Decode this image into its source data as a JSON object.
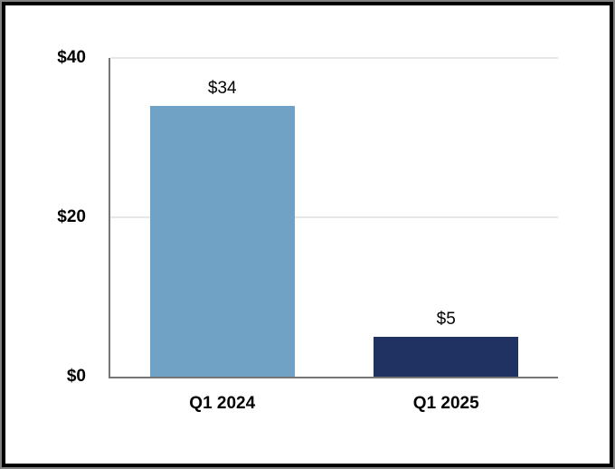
{
  "chart_data": {
    "type": "bar",
    "title": "",
    "xlabel": "",
    "ylabel": "",
    "categories": [
      "Q1 2024",
      "Q1 2025"
    ],
    "values": [
      34,
      5
    ],
    "value_labels": [
      "$34",
      "$5"
    ],
    "bar_colors": [
      "#6FA2C4",
      "#1F3262"
    ],
    "ylim": [
      0,
      40
    ],
    "yticks": [
      0,
      20,
      40
    ],
    "ytick_labels": [
      "$0",
      "$20",
      "$40"
    ],
    "grid": "horizontal-at-20-and-40",
    "legend_position": "none"
  },
  "frame": {
    "outer_border_color": "#828282",
    "inner_border_color": "#000000",
    "background_color": "#FFFFFF"
  },
  "colors": {
    "axis_line": "#757575",
    "gridline": "#E7E7E7",
    "text": "#000000"
  }
}
